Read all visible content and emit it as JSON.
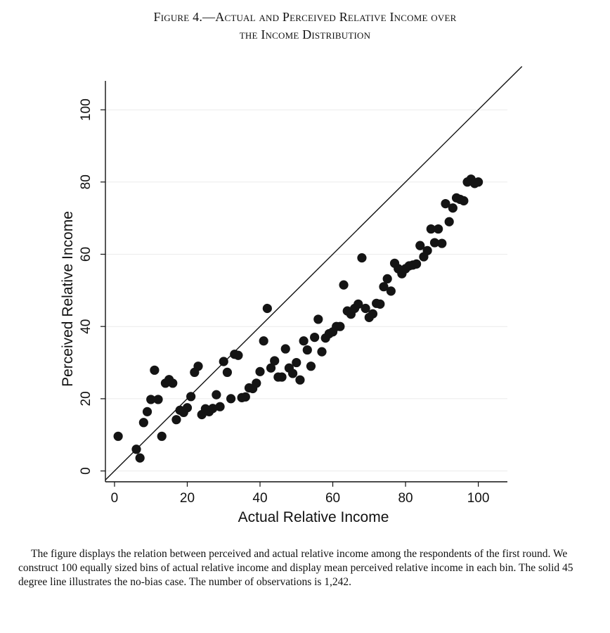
{
  "figure": {
    "title_line1": "Figure 4.—Actual and Perceived Relative Income over",
    "title_line2": "the Income Distribution",
    "caption": "The figure displays the relation between perceived and actual relative income among the respondents of the first round. We construct 100 equally sized bins of actual relative income and display mean perceived relative income in each bin. The solid 45 degree line illustrates the no-bias case. The number of observations is 1,242."
  },
  "chart_data": {
    "type": "scatter",
    "title": "Actual and Perceived Relative Income over the Income Distribution",
    "xlabel": "Actual Relative Income",
    "ylabel": "Perceived Relative Income",
    "xlim": [
      -2.5,
      108
    ],
    "ylim": [
      -3,
      108
    ],
    "xticks": [
      0,
      20,
      40,
      60,
      80,
      100
    ],
    "yticks": [
      0,
      20,
      40,
      60,
      80,
      100
    ],
    "grid": "horizontal",
    "reference_line": {
      "name": "45 degree line",
      "from": [
        -2.5,
        -2.5
      ],
      "to": [
        112,
        112
      ]
    },
    "series": [
      {
        "name": "Mean perceived relative income per bin",
        "x": [
          1,
          6,
          7,
          8,
          9,
          10,
          11,
          12,
          13,
          14,
          15,
          16,
          17,
          18,
          19,
          20,
          21,
          22,
          23,
          24,
          25,
          26,
          27,
          28,
          29,
          30,
          31,
          32,
          33,
          34,
          35,
          36,
          37,
          38,
          39,
          40,
          41,
          42,
          43,
          44,
          45,
          46,
          47,
          48,
          49,
          50,
          51,
          52,
          53,
          54,
          55,
          56,
          57,
          58,
          59,
          60,
          61,
          62,
          63,
          64,
          65,
          66,
          67,
          68,
          69,
          70,
          71,
          72,
          73,
          74,
          75,
          76,
          77,
          78,
          79,
          80,
          81,
          82,
          83,
          84,
          85,
          86,
          87,
          88,
          89,
          90,
          91,
          92,
          93,
          94,
          95,
          96,
          97,
          98,
          99,
          100
        ],
        "y": [
          9.6,
          6.0,
          3.6,
          13.4,
          16.4,
          19.8,
          27.9,
          19.8,
          9.6,
          24.3,
          25.3,
          24.3,
          14.2,
          16.8,
          16.2,
          17.5,
          20.6,
          27.3,
          29.0,
          15.6,
          17.2,
          16.4,
          17.3,
          21.1,
          17.8,
          30.3,
          27.3,
          20.0,
          32.3,
          32.0,
          20.3,
          20.5,
          23.0,
          22.8,
          24.3,
          27.5,
          36.0,
          45.0,
          28.5,
          30.5,
          26.0,
          26.0,
          33.8,
          28.5,
          27.0,
          30.0,
          25.2,
          36.0,
          33.5,
          29.0,
          37.0,
          42.0,
          33.0,
          36.8,
          38.0,
          38.5,
          40.0,
          40.0,
          51.5,
          44.3,
          43.4,
          45.0,
          46.2,
          59.0,
          45.0,
          42.5,
          43.5,
          46.4,
          46.2,
          51.0,
          53.2,
          49.8,
          57.5,
          56.0,
          54.6,
          56.0,
          56.8,
          57.0,
          57.3,
          62.4,
          59.3,
          61.0,
          67.0,
          63.2,
          67.0,
          63.0,
          74.0,
          69.0,
          72.8,
          75.6,
          75.2,
          74.8,
          80.0,
          80.8,
          79.6,
          80.0
        ]
      }
    ]
  }
}
